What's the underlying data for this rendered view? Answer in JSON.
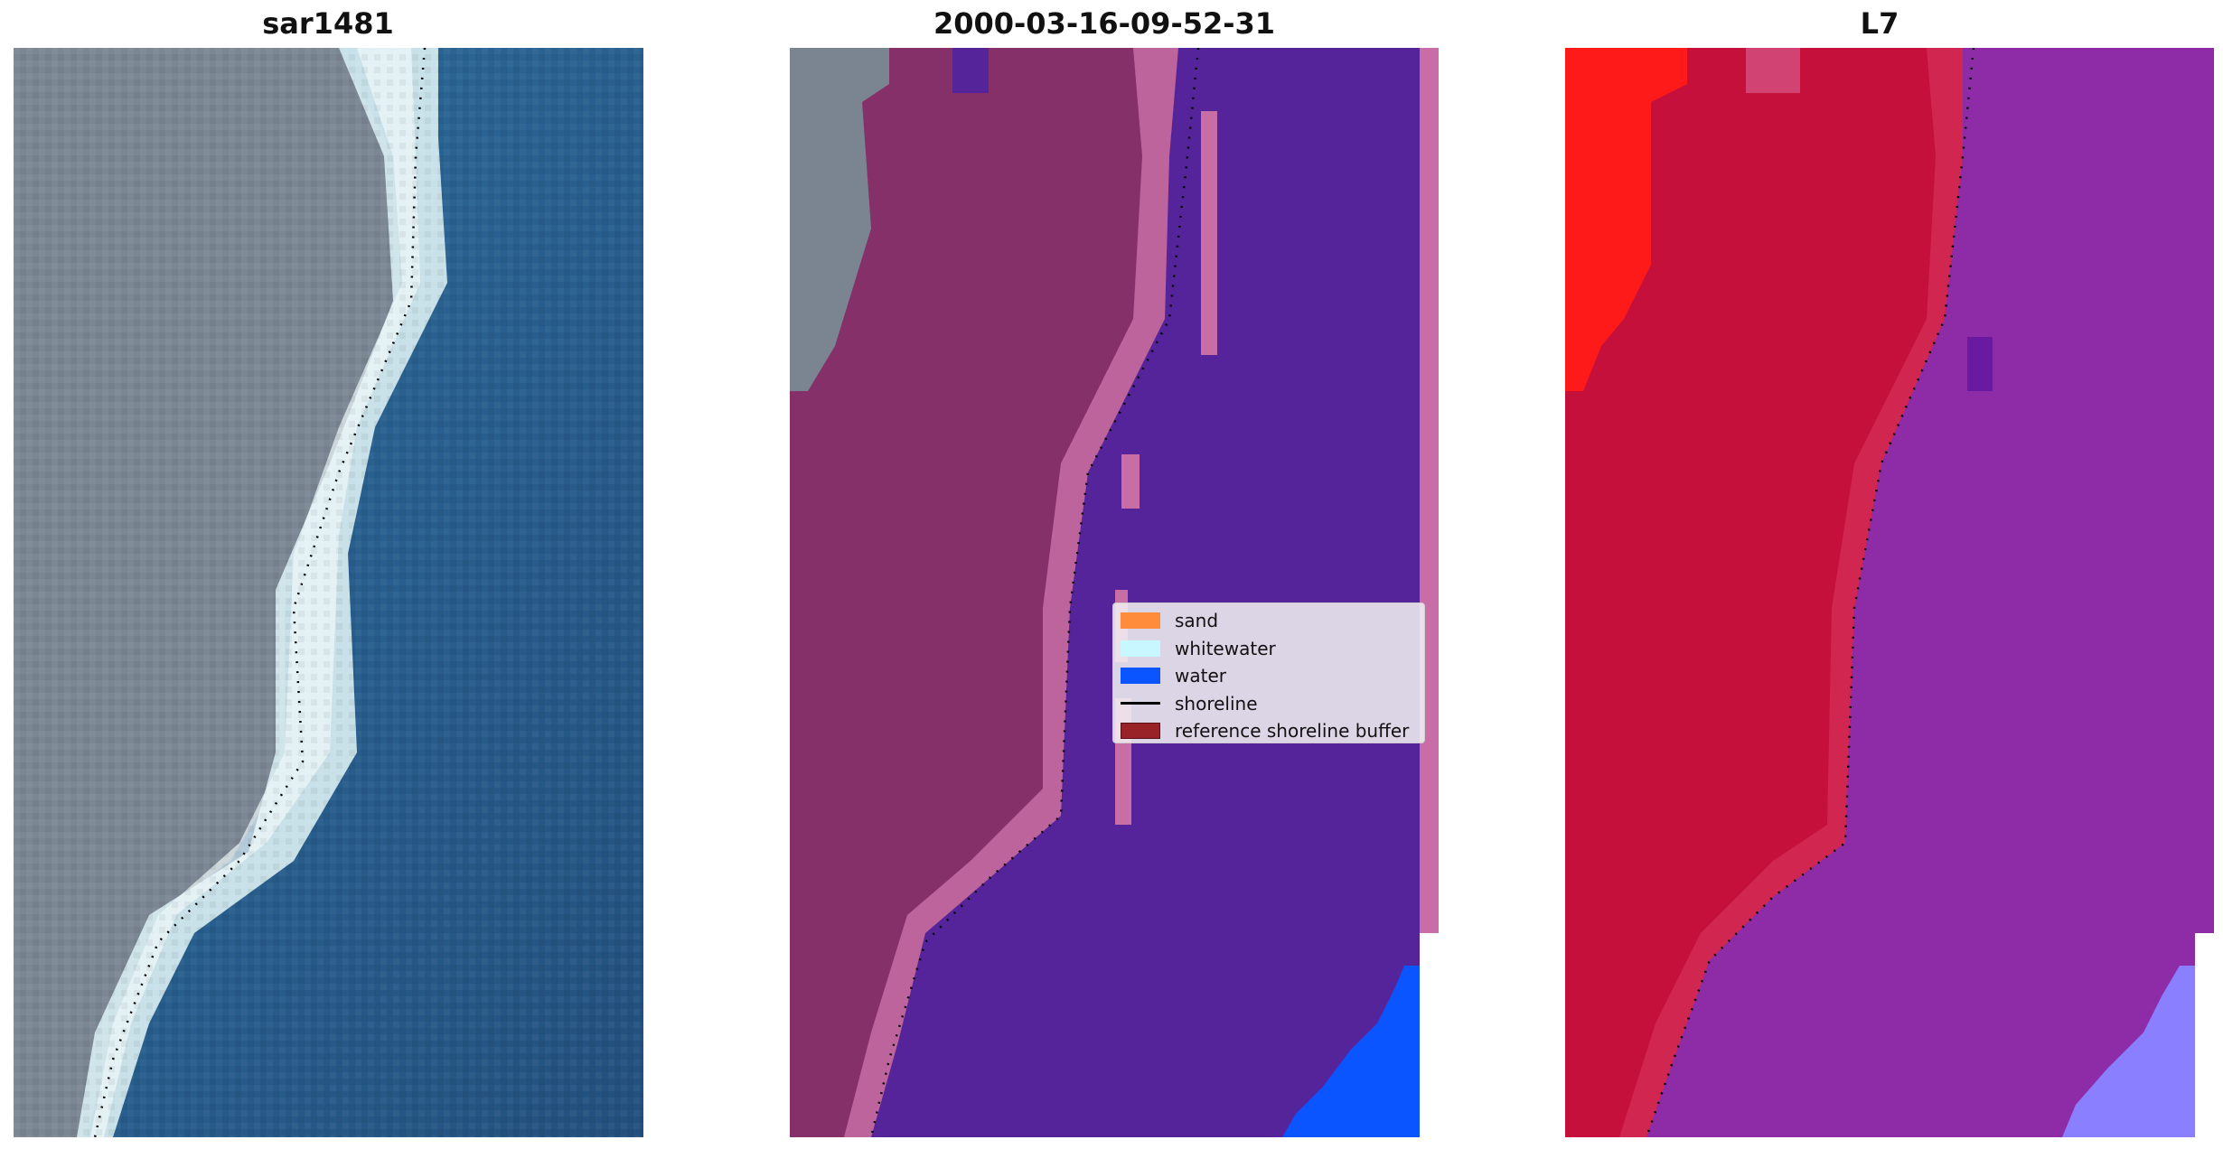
{
  "panels": [
    {
      "id": "rgb",
      "title": "sar1481"
    },
    {
      "id": "classified",
      "title": "2000-03-16-09-52-31"
    },
    {
      "id": "index",
      "title": "L7"
    }
  ],
  "legend": {
    "items": [
      {
        "label": "sand",
        "color": "#ff8c3a",
        "kind": "patch"
      },
      {
        "label": "whitewater",
        "color": "#c8f7ff",
        "kind": "patch"
      },
      {
        "label": "water",
        "color": "#0a55ff",
        "kind": "patch"
      },
      {
        "label": "shoreline",
        "color": "#000000",
        "kind": "line"
      },
      {
        "label": "reference shoreline buffer",
        "color": "#992228",
        "kind": "patch"
      }
    ]
  },
  "colors": {
    "land_gray": "#7d8894",
    "sea_blue": "#2d6b9e",
    "whitewater_rgb": "#d8eef2",
    "class_land": "#86306a",
    "class_water": "#55249b",
    "class_sand_edge": "#c86da6",
    "class_water_bright": "#0a55ff",
    "idx_red": "#ff1a1a",
    "idx_crimson": "#c4103a",
    "idx_purple": "#8d2ca6",
    "idx_lavender": "#8a80ff"
  }
}
